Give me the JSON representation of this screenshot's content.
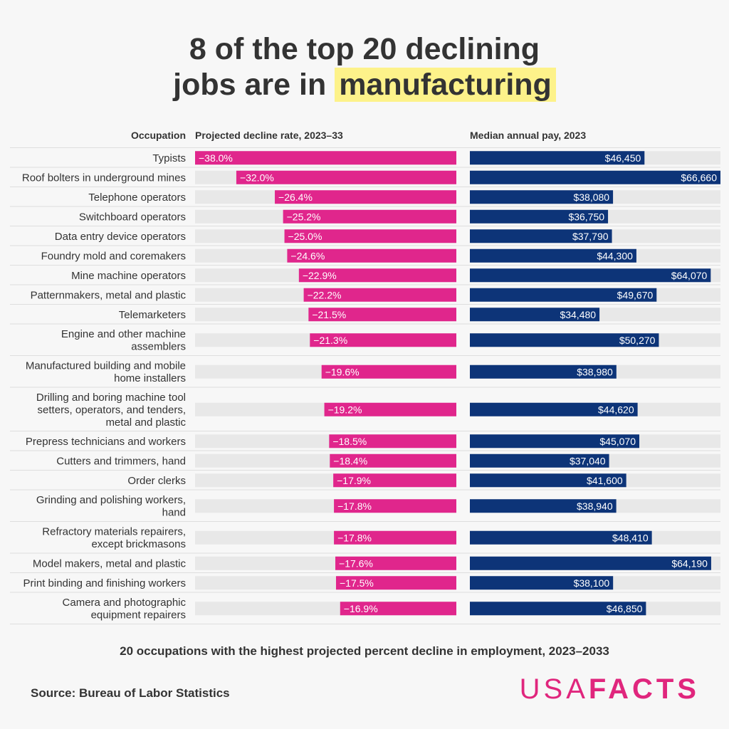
{
  "title": {
    "line1": "8 of the top 20 declining",
    "line2_pre": "jobs are in ",
    "line2_highlight": "manufacturing"
  },
  "subtitle": "20 occupations with the highest projected percent decline in employment, 2023–2033",
  "source": "Source: Bureau of Labor Statistics",
  "logo": {
    "part1": "USA",
    "part2": "FACTS"
  },
  "colors": {
    "decline": "#e0268c",
    "pay": "#0d3478",
    "track": "#e8e8e8",
    "highlight": "#fdf28a",
    "logo": "#e0267d"
  },
  "chart_data": {
    "type": "bar",
    "headers": {
      "category": "Occupation",
      "decline": "Projected decline rate, 2023–33",
      "pay": "Median annual pay, 2023"
    },
    "categories": [
      "Typists",
      "Roof bolters in underground mines",
      "Telephone operators",
      "Switchboard operators",
      "Data entry device operators",
      "Foundry mold and coremakers",
      "Mine machine operators",
      "Patternmakers, metal and plastic",
      "Telemarketers",
      "Engine and other machine assemblers",
      "Manufactured building and mobile home installers",
      "Drilling and boring machine tool setters, operators, and tenders, metal and plastic",
      "Prepress technicians and workers",
      "Cutters and trimmers, hand",
      "Order clerks",
      "Grinding and polishing workers, hand",
      "Refractory materials repairers, except brickmasons",
      "Model makers, metal and plastic",
      "Print binding and finishing workers",
      "Camera and photographic equipment repairers"
    ],
    "category_lines": [
      [
        "Typists"
      ],
      [
        "Roof bolters in underground mines"
      ],
      [
        "Telephone operators"
      ],
      [
        "Switchboard operators"
      ],
      [
        "Data entry device operators"
      ],
      [
        "Foundry mold and coremakers"
      ],
      [
        "Mine machine operators"
      ],
      [
        "Patternmakers, metal and plastic"
      ],
      [
        "Telemarketers"
      ],
      [
        "Engine and other machine",
        "assemblers"
      ],
      [
        "Manufactured building and mobile",
        "home installers"
      ],
      [
        "Drilling and boring machine tool",
        "setters, operators, and tenders,",
        "metal and plastic"
      ],
      [
        "Prepress technicians and workers"
      ],
      [
        "Cutters and trimmers, hand"
      ],
      [
        "Order clerks"
      ],
      [
        "Grinding and polishing workers,",
        "hand"
      ],
      [
        "Refractory materials repairers,",
        "except brickmasons"
      ],
      [
        "Model makers, metal and plastic"
      ],
      [
        "Print binding and finishing workers"
      ],
      [
        "Camera and photographic",
        "equipment repairers"
      ]
    ],
    "series": [
      {
        "name": "Projected decline rate, 2023–33",
        "values": [
          -38.0,
          -32.0,
          -26.4,
          -25.2,
          -25.0,
          -24.6,
          -22.9,
          -22.2,
          -21.5,
          -21.3,
          -19.6,
          -19.2,
          -18.5,
          -18.4,
          -17.9,
          -17.8,
          -17.8,
          -17.6,
          -17.5,
          -16.9
        ],
        "labels": [
          "−38.0%",
          "−32.0%",
          "−26.4%",
          "−25.2%",
          "−25.0%",
          "−24.6%",
          "−22.9%",
          "−22.2%",
          "−21.5%",
          "−21.3%",
          "−19.6%",
          "−19.2%",
          "−18.5%",
          "−18.4%",
          "−17.9%",
          "−17.8%",
          "−17.8%",
          "−17.6%",
          "−17.5%",
          "−16.9%"
        ],
        "xlim": [
          -38,
          0
        ]
      },
      {
        "name": "Median annual pay, 2023",
        "values": [
          46450,
          66660,
          38080,
          36750,
          37790,
          44300,
          64070,
          49670,
          34480,
          50270,
          38980,
          44620,
          45070,
          37040,
          41600,
          38940,
          48410,
          64190,
          38100,
          46850
        ],
        "labels": [
          "$46,450",
          "$66,660",
          "$38,080",
          "$36,750",
          "$37,790",
          "$44,300",
          "$64,070",
          "$49,670",
          "$34,480",
          "$50,270",
          "$38,980",
          "$44,620",
          "$45,070",
          "$37,040",
          "$41,600",
          "$38,940",
          "$48,410",
          "$64,190",
          "$38,100",
          "$46,850"
        ],
        "xlim": [
          0,
          66660
        ]
      }
    ]
  }
}
